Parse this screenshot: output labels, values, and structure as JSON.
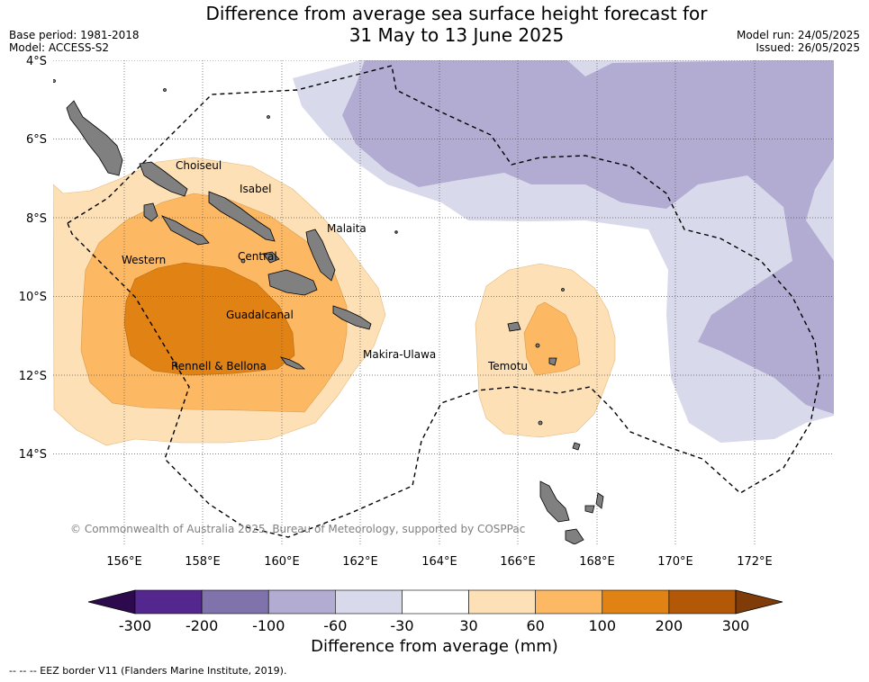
{
  "title_line1": "Difference from average sea surface height forecast for",
  "title_line2": "31 May to 13 June 2025",
  "base_period": "Base period: 1981-2018",
  "model": "Model: ACCESS-S2",
  "model_run": "Model run: 24/05/2025",
  "issued": "Issued: 26/05/2025",
  "copyright": "© Commonwealth of Australia 2025, Bureau of Meteorology, supported by COSPPac",
  "colorbar_label": "Difference from average (mm)",
  "footnote": "--  --  -- EEZ border V11 (Flanders Marine Institute, 2019).",
  "lat_ticks": [
    "4°S",
    "6°S",
    "8°S",
    "10°S",
    "12°S",
    "14°S"
  ],
  "lon_ticks": [
    "156°E",
    "158°E",
    "160°E",
    "162°E",
    "164°E",
    "166°E",
    "168°E",
    "170°E",
    "172°E"
  ],
  "places": [
    "Choiseul",
    "Isabel",
    "Malaita",
    "Western",
    "Central",
    "Guadalcanal",
    "Makira-Ulawa",
    "Rennell & Bellona",
    "Temotu"
  ],
  "colorbar": {
    "ticks": [
      "-300",
      "-200",
      "-100",
      "-60",
      "-30",
      "30",
      "60",
      "100",
      "200",
      "300"
    ],
    "colors": [
      "#2d0a4e",
      "#54278f",
      "#8073ac",
      "#b2abd2",
      "#d8daeb",
      "#ffffff",
      "#fee0b6",
      "#fdb863",
      "#e08214",
      "#b35806",
      "#7f3b08"
    ]
  }
}
